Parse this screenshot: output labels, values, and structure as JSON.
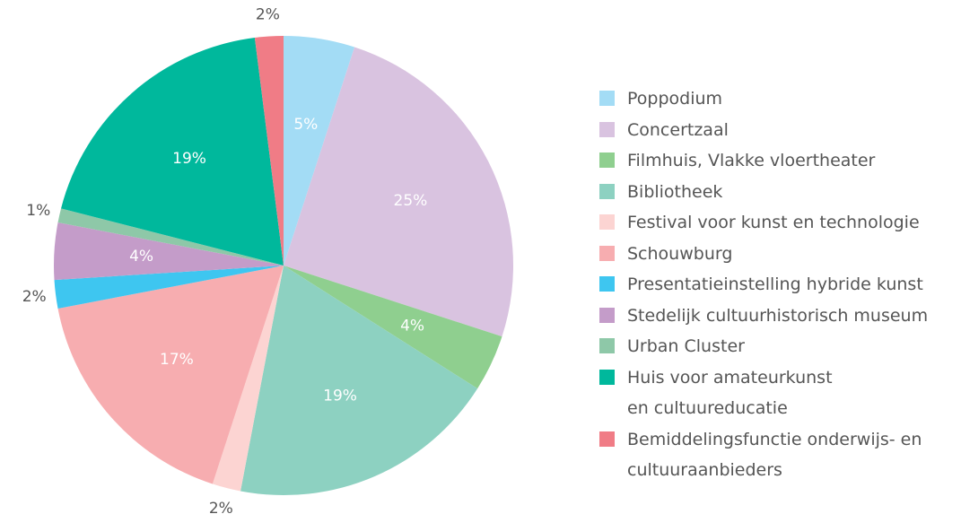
{
  "chart_data": {
    "type": "pie",
    "categories": [
      "Poppodium",
      "Concertzaal",
      "Filmhuis, Vlakke vloertheater",
      "Bibliotheek",
      "Festival voor kunst en technologie",
      "Schouwburg",
      "Presentatieinstelling hybride kunst",
      "Stedelijk cultuurhistorisch museum",
      "Urban Cluster",
      "Huis voor amateurkunst\nen cultuureducatie",
      "Bemiddelingsfunctie onderwijs- en\ncultuuraanbieders"
    ],
    "values": [
      5,
      25,
      4,
      19,
      2,
      17,
      2,
      4,
      1,
      19,
      2
    ],
    "value_labels": [
      "5%",
      "25%",
      "4%",
      "19%",
      "2%",
      "17%",
      "2%",
      "4%",
      "1%",
      "19%",
      "2%"
    ],
    "colors": [
      "#a3dcf5",
      "#d9c3e0",
      "#8fcf8f",
      "#8dd1c1",
      "#fcd4d2",
      "#f7adb0",
      "#3ec6f0",
      "#c49cc9",
      "#8ec8a8",
      "#00b89c",
      "#f07c86"
    ],
    "legend": "right"
  }
}
